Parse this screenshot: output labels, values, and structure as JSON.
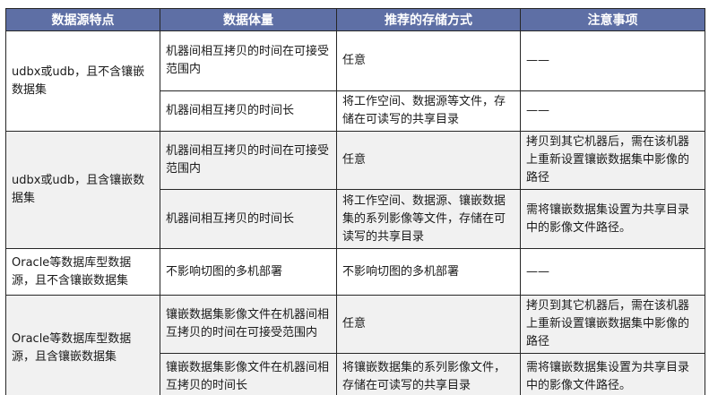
{
  "table": {
    "headers": [
      "数据源特点",
      "数据体量",
      "推荐的存储方式",
      "注意事项"
    ],
    "rows": [
      {
        "shaded": false,
        "cells": [
          {
            "text": "udbx或udb，且不含镶嵌数据集",
            "rowspan": 2
          },
          {
            "text": "机器间相互拷贝的时间在可接受范围内"
          },
          {
            "text": "任意"
          },
          {
            "text": "——"
          }
        ]
      },
      {
        "shaded": false,
        "cells": [
          {
            "text": "机器间相互拷贝的时间长"
          },
          {
            "text": "将工作空间、数据源等文件，存储在可读写的共享目录"
          },
          {
            "text": "——"
          }
        ]
      },
      {
        "shaded": true,
        "cells": [
          {
            "text": "udbx或udb，且含镶嵌数据集",
            "rowspan": 2
          },
          {
            "text": "机器间相互拷贝的时间在可接受范围内"
          },
          {
            "text": "任意"
          },
          {
            "text": "拷贝到其它机器后，需在该机器上重新设置镶嵌数据集中影像的路径"
          }
        ]
      },
      {
        "shaded": true,
        "cells": [
          {
            "text": "机器间相互拷贝的时间长"
          },
          {
            "text": "将工作空间、数据源、镶嵌数据集的系列影像等文件，存储在可读写的共享目录"
          },
          {
            "text": "需将镶嵌数据集设置为共享目录中的影像文件路径。"
          }
        ]
      },
      {
        "shaded": false,
        "cells": [
          {
            "text": "Oracle等数据库型数据源，且不含镶嵌数据集"
          },
          {
            "text": "不影响切图的多机部署"
          },
          {
            "text": "不影响切图的多机部署"
          },
          {
            "text": "——"
          }
        ]
      },
      {
        "shaded": true,
        "cells": [
          {
            "text": "Oracle等数据库型数据源，且含镶嵌数据集",
            "rowspan": 2
          },
          {
            "text": "镶嵌数据集影像文件在机器间相互拷贝的时间在可接受范围内"
          },
          {
            "text": "任意"
          },
          {
            "text": "拷贝到其它机器后，需在该机器上重新设置镶嵌数据集中影像的路径"
          }
        ]
      },
      {
        "shaded": true,
        "cells": [
          {
            "text": "镶嵌数据集影像文件在机器间相互拷贝的时间长"
          },
          {
            "text": "将镶嵌数据集的系列影像文件，存储在可读写的共享目录"
          },
          {
            "text": "需将镶嵌数据集设置为共享目录中的影像文件路径。"
          }
        ]
      }
    ]
  },
  "colors": {
    "header_bg": "#5e6fa5",
    "header_text": "#ffffff",
    "row_bg": "#ffffff",
    "row_shaded_bg": "#f1f1f1",
    "border": "#262626",
    "body_text": "#1a1a1a"
  }
}
